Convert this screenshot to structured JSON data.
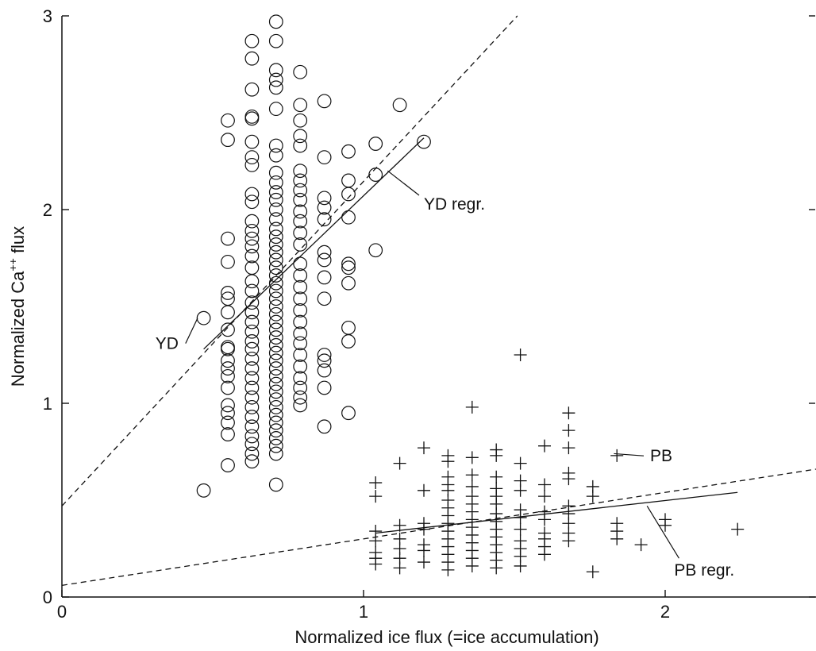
{
  "chart_data": {
    "type": "scatter",
    "title": "",
    "xlabel": "Normalized ice flux (=ice accumulation)",
    "ylabel_main": "Normalized Ca",
    "ylabel_sup": "++",
    "ylabel_end": " flux",
    "xlim": [
      0,
      2.5
    ],
    "ylim": [
      0,
      3
    ],
    "xticks": [
      0,
      1,
      2
    ],
    "yticks": [
      0,
      1,
      2,
      3
    ],
    "xtick_labels": [
      "0",
      "1",
      "2"
    ],
    "ytick_labels": [
      "0",
      "1",
      "2",
      "3"
    ],
    "grid": false,
    "series": [
      {
        "name": "YD",
        "marker": "circle",
        "points": [
          [
            0.47,
            1.44
          ],
          [
            0.47,
            0.55
          ],
          [
            0.55,
            2.46
          ],
          [
            0.55,
            2.36
          ],
          [
            0.55,
            1.85
          ],
          [
            0.55,
            1.73
          ],
          [
            0.55,
            1.57
          ],
          [
            0.55,
            1.54
          ],
          [
            0.55,
            1.47
          ],
          [
            0.55,
            1.38
          ],
          [
            0.55,
            1.29
          ],
          [
            0.55,
            1.28
          ],
          [
            0.55,
            1.22
          ],
          [
            0.55,
            1.18
          ],
          [
            0.55,
            1.14
          ],
          [
            0.55,
            1.08
          ],
          [
            0.55,
            0.99
          ],
          [
            0.55,
            0.95
          ],
          [
            0.55,
            0.9
          ],
          [
            0.55,
            0.84
          ],
          [
            0.55,
            0.68
          ],
          [
            0.63,
            2.87
          ],
          [
            0.63,
            2.78
          ],
          [
            0.63,
            2.62
          ],
          [
            0.63,
            2.48
          ],
          [
            0.63,
            2.47
          ],
          [
            0.63,
            2.35
          ],
          [
            0.63,
            2.27
          ],
          [
            0.63,
            2.23
          ],
          [
            0.63,
            2.08
          ],
          [
            0.63,
            2.04
          ],
          [
            0.63,
            1.94
          ],
          [
            0.63,
            1.89
          ],
          [
            0.63,
            1.85
          ],
          [
            0.63,
            1.81
          ],
          [
            0.63,
            1.76
          ],
          [
            0.63,
            1.7
          ],
          [
            0.63,
            1.63
          ],
          [
            0.63,
            1.58
          ],
          [
            0.63,
            1.52
          ],
          [
            0.63,
            1.47
          ],
          [
            0.63,
            1.42
          ],
          [
            0.63,
            1.37
          ],
          [
            0.63,
            1.32
          ],
          [
            0.63,
            1.28
          ],
          [
            0.63,
            1.23
          ],
          [
            0.63,
            1.18
          ],
          [
            0.63,
            1.13
          ],
          [
            0.63,
            1.08
          ],
          [
            0.63,
            1.03
          ],
          [
            0.63,
            0.98
          ],
          [
            0.63,
            0.93
          ],
          [
            0.63,
            0.88
          ],
          [
            0.63,
            0.83
          ],
          [
            0.63,
            0.79
          ],
          [
            0.63,
            0.74
          ],
          [
            0.63,
            0.7
          ],
          [
            0.71,
            2.97
          ],
          [
            0.71,
            2.87
          ],
          [
            0.71,
            2.72
          ],
          [
            0.71,
            2.67
          ],
          [
            0.71,
            2.63
          ],
          [
            0.71,
            2.52
          ],
          [
            0.71,
            2.33
          ],
          [
            0.71,
            2.28
          ],
          [
            0.71,
            2.19
          ],
          [
            0.71,
            2.14
          ],
          [
            0.71,
            2.09
          ],
          [
            0.71,
            2.05
          ],
          [
            0.71,
            2.0
          ],
          [
            0.71,
            1.95
          ],
          [
            0.71,
            1.9
          ],
          [
            0.71,
            1.86
          ],
          [
            0.71,
            1.82
          ],
          [
            0.71,
            1.78
          ],
          [
            0.71,
            1.74
          ],
          [
            0.71,
            1.7
          ],
          [
            0.71,
            1.66
          ],
          [
            0.71,
            1.62
          ],
          [
            0.71,
            1.58
          ],
          [
            0.71,
            1.54
          ],
          [
            0.71,
            1.5
          ],
          [
            0.71,
            1.46
          ],
          [
            0.71,
            1.42
          ],
          [
            0.71,
            1.38
          ],
          [
            0.71,
            1.34
          ],
          [
            0.71,
            1.3
          ],
          [
            0.71,
            1.26
          ],
          [
            0.71,
            1.22
          ],
          [
            0.71,
            1.18
          ],
          [
            0.71,
            1.14
          ],
          [
            0.71,
            1.1
          ],
          [
            0.71,
            1.06
          ],
          [
            0.71,
            1.02
          ],
          [
            0.71,
            0.98
          ],
          [
            0.71,
            0.94
          ],
          [
            0.71,
            0.9
          ],
          [
            0.71,
            0.86
          ],
          [
            0.71,
            0.82
          ],
          [
            0.71,
            0.78
          ],
          [
            0.71,
            0.74
          ],
          [
            0.71,
            0.58
          ],
          [
            0.79,
            2.71
          ],
          [
            0.79,
            2.54
          ],
          [
            0.79,
            2.46
          ],
          [
            0.79,
            2.38
          ],
          [
            0.79,
            2.33
          ],
          [
            0.79,
            2.2
          ],
          [
            0.79,
            2.15
          ],
          [
            0.79,
            2.1
          ],
          [
            0.79,
            2.05
          ],
          [
            0.79,
            1.99
          ],
          [
            0.79,
            1.94
          ],
          [
            0.79,
            1.88
          ],
          [
            0.79,
            1.82
          ],
          [
            0.79,
            1.72
          ],
          [
            0.79,
            1.66
          ],
          [
            0.79,
            1.6
          ],
          [
            0.79,
            1.54
          ],
          [
            0.79,
            1.48
          ],
          [
            0.79,
            1.42
          ],
          [
            0.79,
            1.36
          ],
          [
            0.79,
            1.31
          ],
          [
            0.79,
            1.25
          ],
          [
            0.79,
            1.19
          ],
          [
            0.79,
            1.13
          ],
          [
            0.79,
            1.08
          ],
          [
            0.79,
            1.03
          ],
          [
            0.79,
            0.99
          ],
          [
            0.87,
            2.56
          ],
          [
            0.87,
            2.27
          ],
          [
            0.87,
            2.06
          ],
          [
            0.87,
            2.01
          ],
          [
            0.87,
            1.95
          ],
          [
            0.87,
            1.78
          ],
          [
            0.87,
            1.74
          ],
          [
            0.87,
            1.65
          ],
          [
            0.87,
            1.54
          ],
          [
            0.87,
            1.25
          ],
          [
            0.87,
            1.22
          ],
          [
            0.87,
            1.17
          ],
          [
            0.87,
            1.08
          ],
          [
            0.87,
            0.88
          ],
          [
            0.95,
            2.3
          ],
          [
            0.95,
            2.15
          ],
          [
            0.95,
            2.08
          ],
          [
            0.95,
            1.96
          ],
          [
            0.95,
            1.72
          ],
          [
            0.95,
            1.7
          ],
          [
            0.95,
            1.62
          ],
          [
            0.95,
            1.39
          ],
          [
            0.95,
            1.32
          ],
          [
            0.95,
            0.95
          ],
          [
            1.04,
            2.34
          ],
          [
            1.04,
            2.18
          ],
          [
            1.04,
            1.79
          ],
          [
            1.12,
            2.54
          ],
          [
            1.2,
            2.35
          ]
        ]
      },
      {
        "name": "PB",
        "marker": "plus",
        "points": [
          [
            1.04,
            0.59
          ],
          [
            1.04,
            0.52
          ],
          [
            1.04,
            0.34
          ],
          [
            1.04,
            0.29
          ],
          [
            1.04,
            0.23
          ],
          [
            1.04,
            0.2
          ],
          [
            1.04,
            0.17
          ],
          [
            1.12,
            0.69
          ],
          [
            1.12,
            0.37
          ],
          [
            1.12,
            0.3
          ],
          [
            1.12,
            0.25
          ],
          [
            1.12,
            0.2
          ],
          [
            1.12,
            0.15
          ],
          [
            1.2,
            0.77
          ],
          [
            1.2,
            0.55
          ],
          [
            1.2,
            0.38
          ],
          [
            1.2,
            0.35
          ],
          [
            1.2,
            0.27
          ],
          [
            1.2,
            0.24
          ],
          [
            1.2,
            0.18
          ],
          [
            1.28,
            0.73
          ],
          [
            1.28,
            0.7
          ],
          [
            1.28,
            0.62
          ],
          [
            1.28,
            0.58
          ],
          [
            1.28,
            0.55
          ],
          [
            1.28,
            0.5
          ],
          [
            1.28,
            0.46
          ],
          [
            1.28,
            0.42
          ],
          [
            1.28,
            0.38
          ],
          [
            1.28,
            0.34
          ],
          [
            1.28,
            0.3
          ],
          [
            1.28,
            0.26
          ],
          [
            1.28,
            0.22
          ],
          [
            1.28,
            0.18
          ],
          [
            1.28,
            0.14
          ],
          [
            1.36,
            0.98
          ],
          [
            1.36,
            0.72
          ],
          [
            1.36,
            0.63
          ],
          [
            1.36,
            0.57
          ],
          [
            1.36,
            0.52
          ],
          [
            1.36,
            0.48
          ],
          [
            1.36,
            0.44
          ],
          [
            1.36,
            0.4
          ],
          [
            1.36,
            0.36
          ],
          [
            1.36,
            0.32
          ],
          [
            1.36,
            0.28
          ],
          [
            1.36,
            0.24
          ],
          [
            1.36,
            0.2
          ],
          [
            1.36,
            0.16
          ],
          [
            1.44,
            0.76
          ],
          [
            1.44,
            0.73
          ],
          [
            1.44,
            0.62
          ],
          [
            1.44,
            0.56
          ],
          [
            1.44,
            0.52
          ],
          [
            1.44,
            0.48
          ],
          [
            1.44,
            0.43
          ],
          [
            1.44,
            0.39
          ],
          [
            1.44,
            0.35
          ],
          [
            1.44,
            0.31
          ],
          [
            1.44,
            0.27
          ],
          [
            1.44,
            0.23
          ],
          [
            1.44,
            0.19
          ],
          [
            1.44,
            0.15
          ],
          [
            1.52,
            1.25
          ],
          [
            1.52,
            0.69
          ],
          [
            1.52,
            0.6
          ],
          [
            1.52,
            0.55
          ],
          [
            1.52,
            0.45
          ],
          [
            1.52,
            0.41
          ],
          [
            1.52,
            0.35
          ],
          [
            1.52,
            0.29
          ],
          [
            1.52,
            0.25
          ],
          [
            1.52,
            0.21
          ],
          [
            1.52,
            0.16
          ],
          [
            1.6,
            0.78
          ],
          [
            1.6,
            0.58
          ],
          [
            1.6,
            0.52
          ],
          [
            1.6,
            0.44
          ],
          [
            1.6,
            0.4
          ],
          [
            1.6,
            0.33
          ],
          [
            1.6,
            0.3
          ],
          [
            1.6,
            0.26
          ],
          [
            1.6,
            0.22
          ],
          [
            1.68,
            0.95
          ],
          [
            1.68,
            0.86
          ],
          [
            1.68,
            0.77
          ],
          [
            1.68,
            0.64
          ],
          [
            1.68,
            0.61
          ],
          [
            1.68,
            0.47
          ],
          [
            1.68,
            0.43
          ],
          [
            1.68,
            0.38
          ],
          [
            1.68,
            0.33
          ],
          [
            1.68,
            0.29
          ],
          [
            1.76,
            0.57
          ],
          [
            1.76,
            0.52
          ],
          [
            1.76,
            0.13
          ],
          [
            1.84,
            0.73
          ],
          [
            1.84,
            0.38
          ],
          [
            1.84,
            0.34
          ],
          [
            1.84,
            0.3
          ],
          [
            1.92,
            0.27
          ],
          [
            2.0,
            0.4
          ],
          [
            2.0,
            0.37
          ],
          [
            2.24,
            0.35
          ]
        ]
      }
    ],
    "lines": [
      {
        "name": "YD",
        "style": "dashed",
        "from": [
          0,
          0.47
        ],
        "to": [
          1.51,
          3.0
        ]
      },
      {
        "name": "YD regr.",
        "style": "solid",
        "from": [
          0.47,
          1.28
        ],
        "to": [
          1.2,
          2.37
        ]
      },
      {
        "name": "PB",
        "style": "dashed",
        "from": [
          0,
          0.06
        ],
        "to": [
          2.5,
          0.66
        ]
      },
      {
        "name": "PB regr.",
        "style": "solid",
        "from": [
          1.04,
          0.33
        ],
        "to": [
          2.24,
          0.54
        ]
      }
    ],
    "annotations": [
      {
        "text": "YD",
        "anchor": [
          0.31,
          1.28
        ],
        "target": [
          0.45,
          1.44
        ]
      },
      {
        "text": "YD regr.",
        "anchor": [
          1.2,
          2.0
        ],
        "target": [
          1.08,
          2.2
        ]
      },
      {
        "text": "PB",
        "anchor": [
          1.95,
          0.7
        ],
        "target": [
          1.83,
          0.74
        ]
      },
      {
        "text": "PB regr.",
        "anchor": [
          2.03,
          0.11
        ],
        "target": [
          1.94,
          0.47
        ]
      }
    ]
  }
}
